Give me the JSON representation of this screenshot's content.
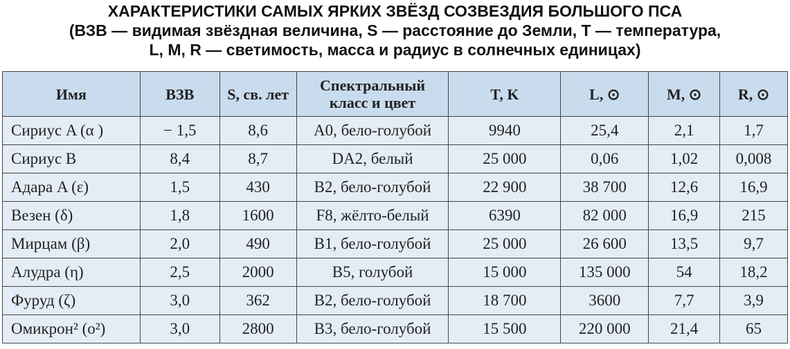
{
  "header": {
    "title": [
      "ХАРАКТЕРИСТИКИ САМЫХ ЯРКИХ ЗВЁЗД СОЗВЕЗДИЯ БОЛЬШОГО ПСА",
      "(ВЗВ — видимая звёздная величина, S — расстояние до Земли, T — температура,",
      "L, M, R — светимость, масса и радиус в солнечных единицах)"
    ]
  },
  "table": {
    "columns": [
      "Имя",
      "ВЗВ",
      "S, св. лет",
      "Спектральный класс и цвет",
      "T, K",
      "L, ⊙",
      "M, ⊙",
      "R, ⊙"
    ],
    "rows": [
      [
        "Сириус A (α )",
        "− 1,5",
        "8,6",
        "A0, бело-голубой",
        "9940",
        "25,4",
        "2,1",
        "1,7"
      ],
      [
        "Сириус B",
        "8,4",
        "8,7",
        "DA2, белый",
        "25 000",
        "0,06",
        "1,02",
        "0,008"
      ],
      [
        "Адара A (ε)",
        "1,5",
        "430",
        "B2, бело-голубой",
        "22 900",
        "38 700",
        "12,6",
        "16,9"
      ],
      [
        "Везен (δ)",
        "1,8",
        "1600",
        "F8, жёлто-белый",
        "6390",
        "82 000",
        "16,9",
        "215"
      ],
      [
        "Мирцам (β)",
        "2,0",
        "490",
        "B1, бело-голубой",
        "25 000",
        "26 600",
        "13,5",
        "9,7"
      ],
      [
        "Алудра (η)",
        "2,5",
        "2000",
        "B5, голубой",
        "15 000",
        "135 000",
        "54",
        "18,2"
      ],
      [
        "Фуруд (ζ)",
        "3,0",
        "362",
        "B2, бело-голубой",
        "18 700",
        "3600",
        "7,7",
        "3,9"
      ],
      [
        "Омикрон² (o²)",
        "3,0",
        "2800",
        "B3, бело-голубой",
        "15 500",
        "220 000",
        "21,4",
        "65"
      ]
    ]
  }
}
